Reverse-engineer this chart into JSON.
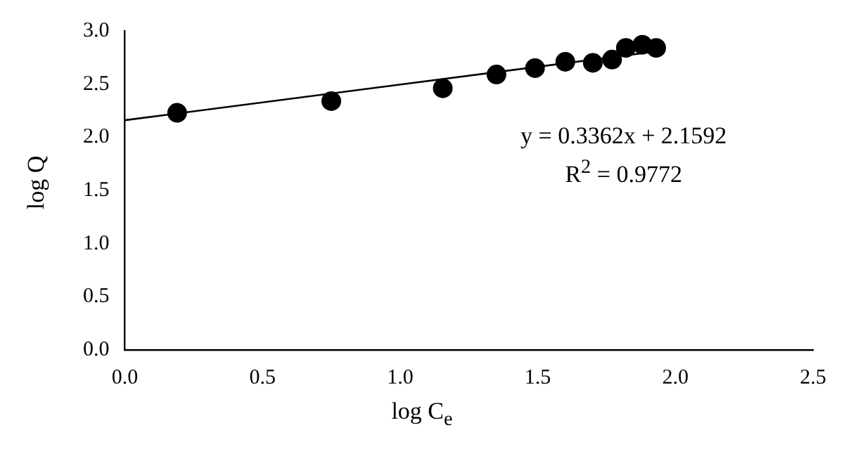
{
  "chart_data": {
    "type": "scatter",
    "xlabel": "log C$_{e}$",
    "ylabel": "log Q",
    "xlim": [
      0,
      2.5
    ],
    "xticks": [
      {
        "value": 0,
        "label": "0.0"
      },
      {
        "value": 0.5,
        "label": "0.5"
      },
      {
        "value": 1,
        "label": "1.0"
      },
      {
        "value": 1.5,
        "label": "1.5"
      },
      {
        "value": 2,
        "label": "2.0"
      },
      {
        "value": 2.5,
        "label": "2.5"
      }
    ],
    "ylim": [
      0,
      3
    ],
    "yticks": [
      {
        "value": 0,
        "label": "0.0"
      },
      {
        "value": 0.5,
        "label": "0.5"
      },
      {
        "value": 1,
        "label": "1.0"
      },
      {
        "value": 1.5,
        "label": "1.5"
      },
      {
        "value": 2,
        "label": "2.0"
      },
      {
        "value": 2.5,
        "label": "2.5"
      },
      {
        "value": 3,
        "label": "3.0"
      }
    ],
    "grid": false,
    "legend": false,
    "marker": "circle",
    "series": [
      {
        "type": "scatter",
        "color": "#000000",
        "x": [
          0.19,
          0.75,
          1.155,
          1.35,
          1.49,
          1.6,
          1.7,
          1.77,
          1.82,
          1.88,
          1.93
        ],
        "values": [
          2.23,
          2.34,
          2.46,
          2.59,
          2.65,
          2.71,
          2.7,
          2.73,
          2.84,
          2.87,
          2.84
        ]
      },
      {
        "type": "line",
        "color": "#000000",
        "marker": "none",
        "x": [
          0,
          1.94
        ],
        "values": [
          2.16,
          2.81
        ]
      }
    ],
    "annotations": [
      "y = 0.3362x + 2.1592",
      "R$^{2}$ = 0.9772"
    ]
  }
}
